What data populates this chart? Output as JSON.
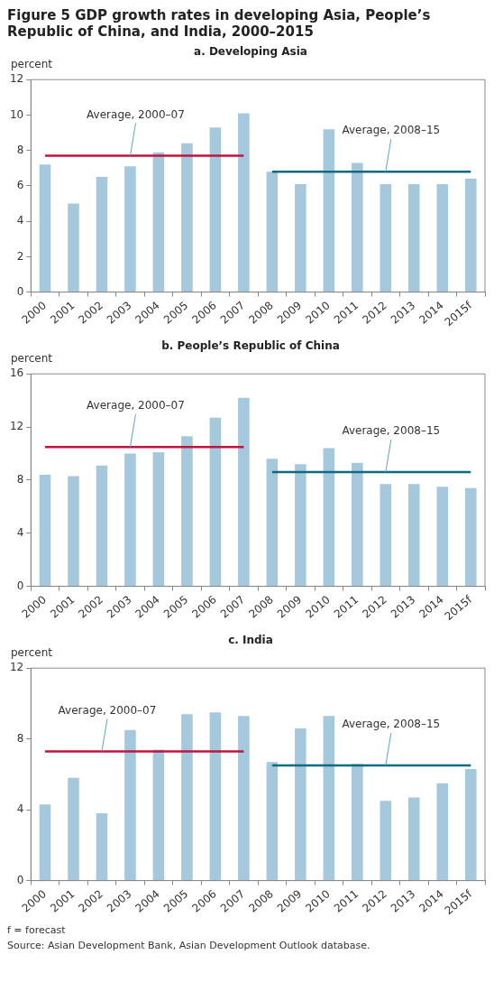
{
  "chart_data": [
    {
      "type": "bar",
      "title": "Figure 5 GDP growth rates in developing Asia, People’s Republic of China, and India, 2000–2015",
      "subtitle": "a. Developing Asia",
      "ylabel": "percent",
      "categories": [
        "2000",
        "2001",
        "2002",
        "2003",
        "2004",
        "2005",
        "2006",
        "2007",
        "2008",
        "2009",
        "2010",
        "2011",
        "2012",
        "2013",
        "2014",
        "2015f"
      ],
      "series": [
        {
          "type": "bar",
          "color": "#a6c8dc",
          "values": [
            7.2,
            5.0,
            6.5,
            7.1,
            7.9,
            8.4,
            9.3,
            10.1,
            6.8,
            6.1,
            9.2,
            7.3,
            6.1,
            6.1,
            6.1,
            6.4
          ]
        },
        {
          "type": "line",
          "color": "#c0143f",
          "values": [
            7.7,
            7.7,
            7.7,
            7.7,
            7.7,
            7.7,
            7.7,
            7.7,
            null,
            null,
            null,
            null,
            null,
            null,
            null,
            null
          ]
        },
        {
          "type": "line",
          "color": "#0e6a82",
          "values": [
            null,
            null,
            null,
            null,
            null,
            null,
            null,
            null,
            6.8,
            6.8,
            6.8,
            6.8,
            6.8,
            6.8,
            6.8,
            6.8
          ]
        }
      ],
      "annotations": [
        {
          "text": "Average, 2000–07",
          "x": "2003",
          "y": 7.7
        },
        {
          "text": "Average, 2008–15",
          "x": "2012",
          "y": 6.8
        }
      ],
      "ylim": [
        0,
        12
      ],
      "yticks": [
        0,
        2,
        4,
        6,
        8,
        10,
        12
      ],
      "grid": false,
      "marker": "none"
    },
    {
      "type": "bar",
      "title": "b. People’s Republic of China",
      "ylabel": "percent",
      "categories": [
        "2000",
        "2001",
        "2002",
        "2003",
        "2004",
        "2005",
        "2006",
        "2007",
        "2008",
        "2009",
        "2010",
        "2011",
        "2012",
        "2013",
        "2014",
        "2015f"
      ],
      "series": [
        {
          "type": "bar",
          "color": "#a6c8dc",
          "values": [
            8.4,
            8.3,
            9.1,
            10.0,
            10.1,
            11.3,
            12.7,
            14.2,
            9.6,
            9.2,
            10.4,
            9.3,
            7.7,
            7.7,
            7.5,
            7.4
          ]
        },
        {
          "type": "line",
          "color": "#c0143f",
          "values": [
            10.5,
            10.5,
            10.5,
            10.5,
            10.5,
            10.5,
            10.5,
            10.5,
            null,
            null,
            null,
            null,
            null,
            null,
            null,
            null
          ]
        },
        {
          "type": "line",
          "color": "#0e6a82",
          "values": [
            null,
            null,
            null,
            null,
            null,
            null,
            null,
            null,
            8.6,
            8.6,
            8.6,
            8.6,
            8.6,
            8.6,
            8.6,
            8.6
          ]
        }
      ],
      "annotations": [
        {
          "text": "Average, 2000–07",
          "x": "2003",
          "y": 10.5
        },
        {
          "text": "Average, 2008–15",
          "x": "2012",
          "y": 8.6
        }
      ],
      "ylim": [
        0,
        16
      ],
      "yticks": [
        0,
        4,
        8,
        12,
        16
      ],
      "grid": false,
      "marker": "none"
    },
    {
      "type": "bar",
      "title": "c. India",
      "ylabel": "percent",
      "categories": [
        "2000",
        "2001",
        "2002",
        "2003",
        "2004",
        "2005",
        "2006",
        "2007",
        "2008",
        "2009",
        "2010",
        "2011",
        "2012",
        "2013",
        "2014",
        "2015f"
      ],
      "series": [
        {
          "type": "bar",
          "color": "#a6c8dc",
          "values": [
            4.3,
            5.8,
            3.8,
            8.5,
            7.4,
            9.4,
            9.5,
            9.3,
            6.7,
            8.6,
            9.3,
            6.6,
            4.5,
            4.7,
            5.5,
            6.3
          ]
        },
        {
          "type": "line",
          "color": "#c0143f",
          "values": [
            7.3,
            7.3,
            7.3,
            7.3,
            7.3,
            7.3,
            7.3,
            7.3,
            null,
            null,
            null,
            null,
            null,
            null,
            null,
            null
          ]
        },
        {
          "type": "line",
          "color": "#0e6a82",
          "values": [
            null,
            null,
            null,
            null,
            null,
            null,
            null,
            null,
            6.5,
            6.5,
            6.5,
            6.5,
            6.5,
            6.5,
            6.5,
            6.5
          ]
        }
      ],
      "annotations": [
        {
          "text": "Average, 2000–07",
          "x": "2002",
          "y": 7.3
        },
        {
          "text": "Average, 2008–15",
          "x": "2012",
          "y": 6.5
        },
        "f = forecast",
        "Source: Asian Development Bank, Asian Development Outlook database."
      ],
      "ylim": [
        0,
        12
      ],
      "yticks": [
        0,
        4,
        8,
        12
      ],
      "grid": false,
      "marker": "none"
    }
  ]
}
